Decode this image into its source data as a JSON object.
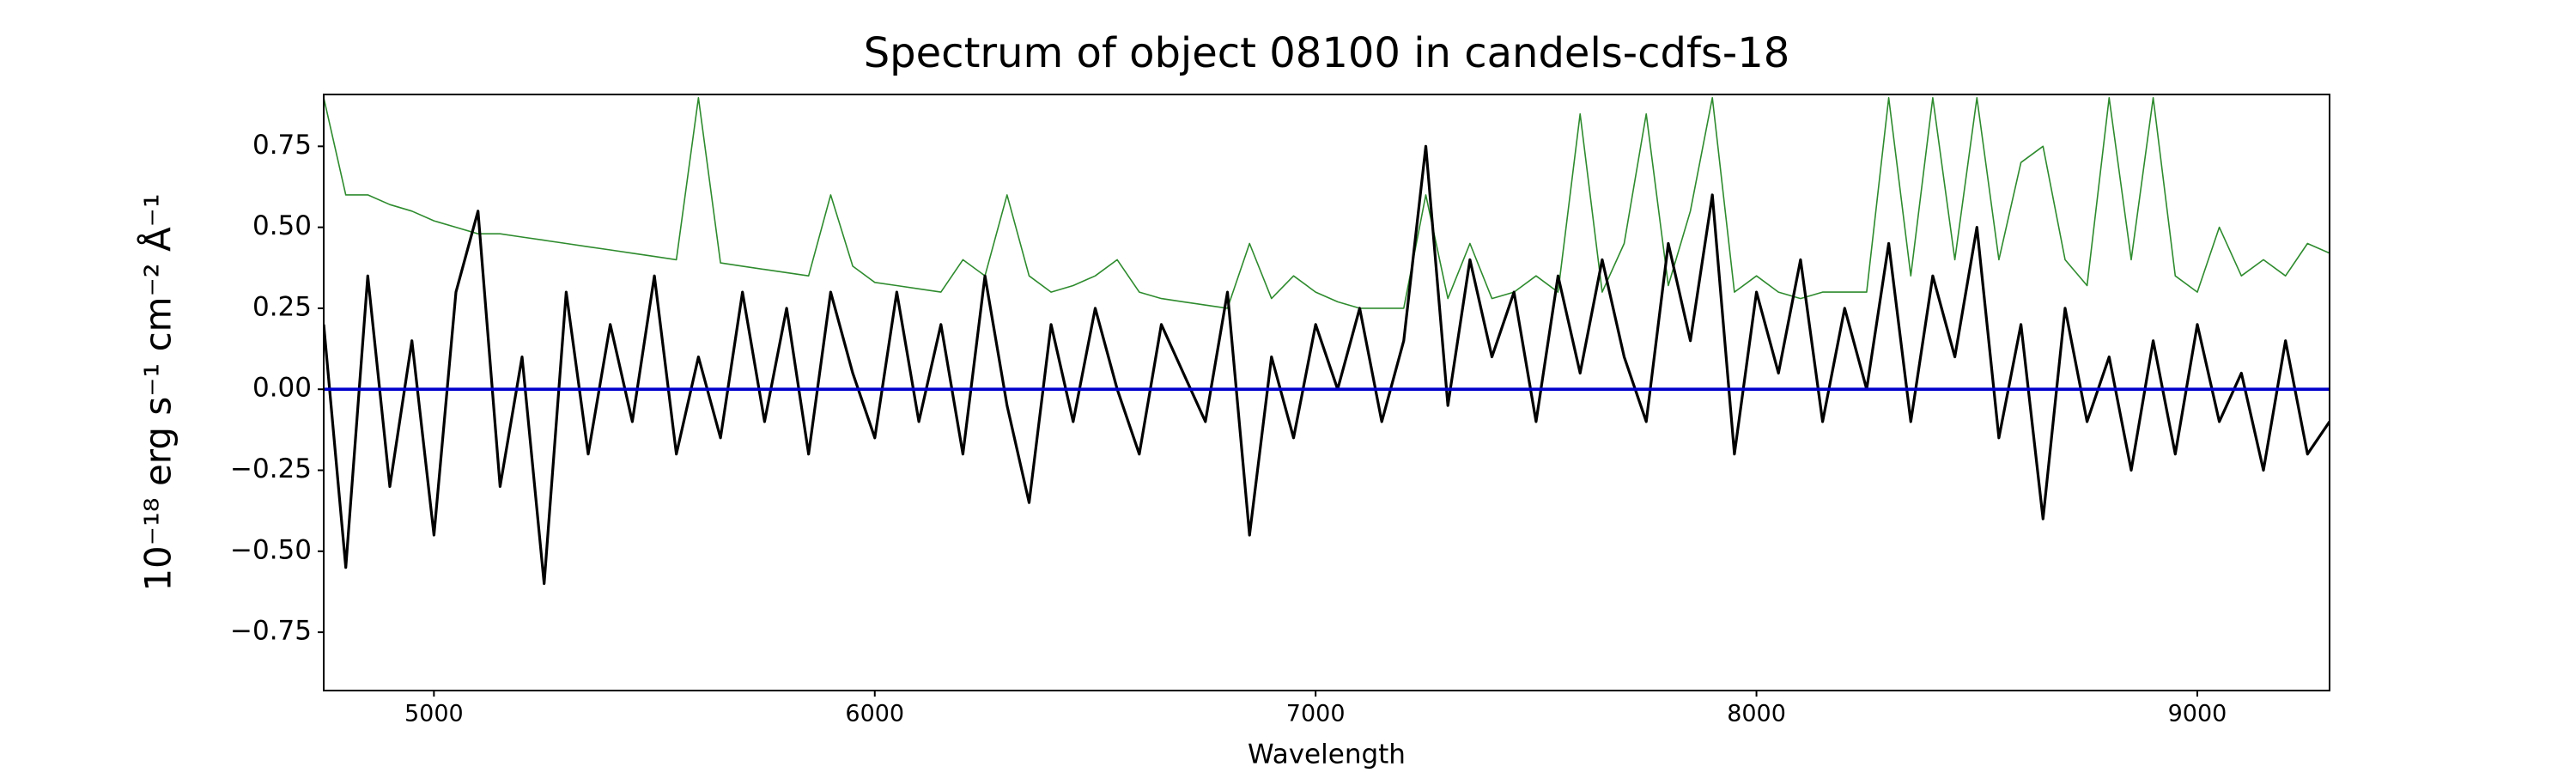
{
  "chart_data": {
    "type": "line",
    "title": "Spectrum of object 08100 in candels-cdfs-18",
    "xlabel": "Wavelength",
    "ylabel": "10⁻¹⁸ erg s⁻¹ cm⁻² Å⁻¹",
    "xlim": [
      4750,
      9300
    ],
    "ylim": [
      -0.93,
      0.91
    ],
    "xticks": [
      5000,
      6000,
      7000,
      8000,
      9000
    ],
    "yticks": [
      {
        "value": -0.75,
        "label": "−0.75"
      },
      {
        "value": -0.5,
        "label": "−0.50"
      },
      {
        "value": -0.25,
        "label": "−0.25"
      },
      {
        "value": 0,
        "label": "0.00"
      },
      {
        "value": 0.25,
        "label": "0.25"
      },
      {
        "value": 0.5,
        "label": "0.50"
      },
      {
        "value": 0.75,
        "label": "0.75"
      }
    ],
    "grid": false,
    "x": [
      4750,
      4800,
      4850,
      4900,
      4950,
      5000,
      5050,
      5100,
      5150,
      5200,
      5250,
      5300,
      5350,
      5400,
      5450,
      5500,
      5550,
      5600,
      5650,
      5700,
      5750,
      5800,
      5850,
      5900,
      5950,
      6000,
      6050,
      6100,
      6150,
      6200,
      6250,
      6300,
      6350,
      6400,
      6450,
      6500,
      6550,
      6600,
      6650,
      6700,
      6750,
      6800,
      6850,
      6900,
      6950,
      7000,
      7050,
      7100,
      7150,
      7200,
      7250,
      7300,
      7350,
      7400,
      7450,
      7500,
      7550,
      7600,
      7650,
      7700,
      7750,
      7800,
      7850,
      7900,
      7950,
      8000,
      8050,
      8100,
      8150,
      8200,
      8250,
      8300,
      8350,
      8400,
      8450,
      8500,
      8550,
      8600,
      8650,
      8700,
      8750,
      8800,
      8850,
      8900,
      8950,
      9000,
      9050,
      9100,
      9150,
      9200,
      9250,
      9300
    ],
    "series": [
      {
        "color": "#2e8b2e",
        "width": 1.6,
        "values": [
          0.9,
          0.6,
          0.6,
          0.57,
          0.55,
          0.52,
          0.5,
          0.48,
          0.48,
          0.47,
          0.46,
          0.45,
          0.44,
          0.43,
          0.42,
          0.41,
          0.4,
          0.9,
          0.39,
          0.38,
          0.37,
          0.36,
          0.35,
          0.6,
          0.38,
          0.33,
          0.32,
          0.31,
          0.3,
          0.4,
          0.35,
          0.6,
          0.35,
          0.3,
          0.32,
          0.35,
          0.4,
          0.3,
          0.28,
          0.27,
          0.26,
          0.25,
          0.45,
          0.28,
          0.35,
          0.3,
          0.27,
          0.25,
          0.25,
          0.25,
          0.6,
          0.28,
          0.45,
          0.28,
          0.3,
          0.35,
          0.3,
          0.85,
          0.3,
          0.45,
          0.85,
          0.32,
          0.55,
          0.9,
          0.3,
          0.35,
          0.3,
          0.28,
          0.3,
          0.3,
          0.3,
          0.9,
          0.35,
          0.9,
          0.4,
          0.9,
          0.4,
          0.7,
          0.75,
          0.4,
          0.32,
          0.9,
          0.4,
          0.9,
          0.35,
          0.3,
          0.5,
          0.35,
          0.4,
          0.35,
          0.45,
          0.42
        ]
      },
      {
        "color": "#000000",
        "width": 3.2,
        "values": [
          0.2,
          -0.55,
          0.35,
          -0.3,
          0.15,
          -0.45,
          0.3,
          0.55,
          -0.3,
          0.1,
          -0.6,
          0.3,
          -0.2,
          0.2,
          -0.1,
          0.35,
          -0.2,
          0.1,
          -0.15,
          0.3,
          -0.1,
          0.25,
          -0.2,
          0.3,
          0.05,
          -0.15,
          0.3,
          -0.1,
          0.2,
          -0.2,
          0.35,
          -0.05,
          -0.35,
          0.2,
          -0.1,
          0.25,
          0.0,
          -0.2,
          0.2,
          0.05,
          -0.1,
          0.3,
          -0.45,
          0.1,
          -0.15,
          0.2,
          0.0,
          0.25,
          -0.1,
          0.15,
          0.75,
          -0.05,
          0.4,
          0.1,
          0.3,
          -0.1,
          0.35,
          0.05,
          0.4,
          0.1,
          -0.1,
          0.45,
          0.15,
          0.6,
          -0.2,
          0.3,
          0.05,
          0.4,
          -0.1,
          0.25,
          0.0,
          0.45,
          -0.1,
          0.35,
          0.1,
          0.5,
          -0.15,
          0.2,
          -0.4,
          0.25,
          -0.1,
          0.1,
          -0.25,
          0.15,
          -0.2,
          0.2,
          -0.1,
          0.05,
          -0.25,
          0.15,
          -0.2,
          -0.1
        ]
      },
      {
        "color": "#0000cc",
        "width": 3.6,
        "values": [
          0,
          0,
          0,
          0,
          0,
          0,
          0,
          0,
          0,
          0,
          0,
          0,
          0,
          0,
          0,
          0,
          0,
          0,
          0,
          0,
          0,
          0,
          0,
          0,
          0,
          0,
          0,
          0,
          0,
          0,
          0,
          0,
          0,
          0,
          0,
          0,
          0,
          0,
          0,
          0,
          0,
          0,
          0,
          0,
          0,
          0,
          0,
          0,
          0,
          0,
          0,
          0,
          0,
          0,
          0,
          0,
          0,
          0,
          0,
          0,
          0,
          0,
          0,
          0,
          0,
          0,
          0,
          0,
          0,
          0,
          0,
          0,
          0,
          0,
          0,
          0,
          0,
          0,
          0,
          0,
          0,
          0,
          0,
          0,
          0,
          0,
          0,
          0,
          0,
          0,
          0,
          0
        ]
      }
    ]
  }
}
